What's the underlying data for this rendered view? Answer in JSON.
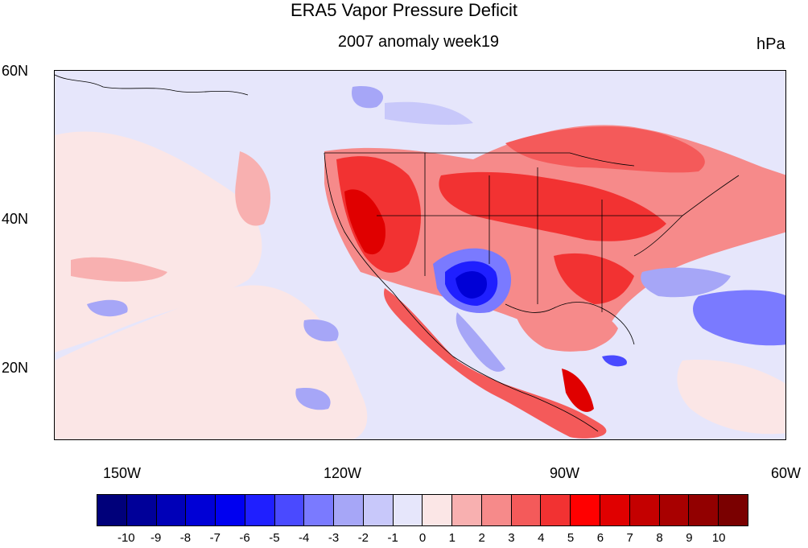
{
  "title": "ERA5 Vapor Pressure Deficit",
  "subtitle": "2007 anomaly week19",
  "units": "hPa",
  "map": {
    "projection": "cylindrical-equidistant",
    "extent": {
      "lon_min": -159,
      "lon_max": -60,
      "lat_min": 10,
      "lat_max": 60
    },
    "lat_labels": [
      {
        "lat": 60,
        "text": "60N"
      },
      {
        "lat": 40,
        "text": "40N"
      },
      {
        "lat": 20,
        "text": "20N"
      }
    ],
    "lon_labels": [
      {
        "lon": -150,
        "text": "150W"
      },
      {
        "lon": -120,
        "text": "120W"
      },
      {
        "lon": -90,
        "text": "90W"
      },
      {
        "lon": -60,
        "text": "60W"
      }
    ],
    "field": "VPD anomaly (hPa)"
  },
  "colorbar": {
    "colors": [
      "#00007a",
      "#000099",
      "#0000b8",
      "#0000d6",
      "#0000f0",
      "#1f1fff",
      "#4a4aff",
      "#7a7aff",
      "#a6a6f7",
      "#c8c8fa",
      "#e6e6fb",
      "#fbe6e6",
      "#f8b0b0",
      "#f68a8a",
      "#f45a5a",
      "#f23232",
      "#ff0000",
      "#e00000",
      "#c40000",
      "#a80000",
      "#920000",
      "#7a0000"
    ],
    "labels": [
      "-10",
      "-9",
      "-8",
      "-7",
      "-6",
      "-5",
      "-4",
      "-3",
      "-2",
      "-1",
      "0",
      "1",
      "2",
      "3",
      "4",
      "5",
      "6",
      "7",
      "8",
      "9",
      "10"
    ]
  }
}
